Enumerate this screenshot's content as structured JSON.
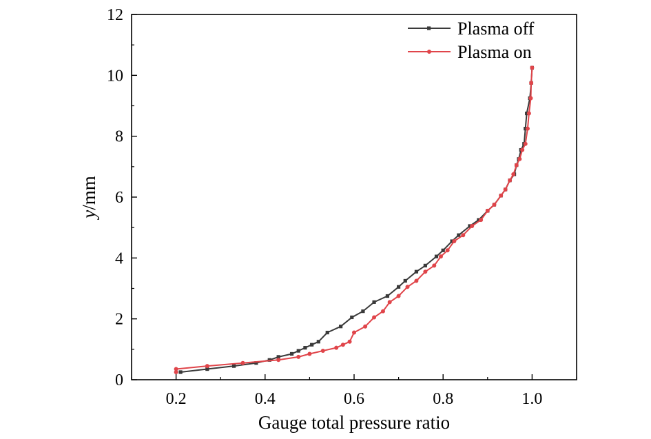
{
  "chart_data": {
    "type": "line",
    "title": "",
    "xlabel": "Gauge total pressure ratio",
    "ylabel_italic": "y",
    "ylabel_rest": "/mm",
    "xlim": [
      0.1,
      1.1
    ],
    "ylim": [
      0,
      12
    ],
    "x_ticks": [
      0.2,
      0.4,
      0.6,
      0.8,
      1.0
    ],
    "x_tick_labels": [
      "0.2",
      "0.4",
      "0.6",
      "0.8",
      "1.0"
    ],
    "y_ticks": [
      0,
      2,
      4,
      6,
      8,
      10,
      12
    ],
    "y_tick_labels": [
      "0",
      "2",
      "4",
      "6",
      "8",
      "10",
      "12"
    ],
    "grid": false,
    "legend_position": "top-right",
    "series": [
      {
        "name": "Plasma off",
        "color": "#3a3a3a",
        "marker": "square",
        "points": [
          [
            0.21,
            0.25
          ],
          [
            0.27,
            0.35
          ],
          [
            0.33,
            0.45
          ],
          [
            0.38,
            0.55
          ],
          [
            0.41,
            0.65
          ],
          [
            0.43,
            0.75
          ],
          [
            0.46,
            0.85
          ],
          [
            0.475,
            0.95
          ],
          [
            0.49,
            1.05
          ],
          [
            0.505,
            1.15
          ],
          [
            0.52,
            1.25
          ],
          [
            0.54,
            1.55
          ],
          [
            0.57,
            1.75
          ],
          [
            0.595,
            2.05
          ],
          [
            0.62,
            2.25
          ],
          [
            0.645,
            2.55
          ],
          [
            0.675,
            2.75
          ],
          [
            0.7,
            3.05
          ],
          [
            0.715,
            3.25
          ],
          [
            0.74,
            3.55
          ],
          [
            0.76,
            3.75
          ],
          [
            0.785,
            4.05
          ],
          [
            0.8,
            4.25
          ],
          [
            0.82,
            4.55
          ],
          [
            0.835,
            4.75
          ],
          [
            0.86,
            5.05
          ],
          [
            0.88,
            5.25
          ],
          [
            0.9,
            5.55
          ],
          [
            0.915,
            5.75
          ],
          [
            0.93,
            6.05
          ],
          [
            0.94,
            6.25
          ],
          [
            0.95,
            6.55
          ],
          [
            0.96,
            6.75
          ],
          [
            0.965,
            7.05
          ],
          [
            0.97,
            7.25
          ],
          [
            0.975,
            7.55
          ],
          [
            0.982,
            7.75
          ],
          [
            0.985,
            8.25
          ],
          [
            0.988,
            8.75
          ],
          [
            0.995,
            9.25
          ],
          [
            0.998,
            9.75
          ],
          [
            1.0,
            10.25
          ]
        ]
      },
      {
        "name": "Plasma on",
        "color": "#e0454a",
        "marker": "circle",
        "points": [
          [
            0.2,
            0.25
          ],
          [
            0.2,
            0.35
          ],
          [
            0.27,
            0.45
          ],
          [
            0.35,
            0.55
          ],
          [
            0.43,
            0.65
          ],
          [
            0.475,
            0.75
          ],
          [
            0.5,
            0.85
          ],
          [
            0.53,
            0.95
          ],
          [
            0.56,
            1.05
          ],
          [
            0.575,
            1.15
          ],
          [
            0.59,
            1.25
          ],
          [
            0.6,
            1.55
          ],
          [
            0.625,
            1.75
          ],
          [
            0.645,
            2.05
          ],
          [
            0.665,
            2.25
          ],
          [
            0.68,
            2.55
          ],
          [
            0.7,
            2.75
          ],
          [
            0.72,
            3.05
          ],
          [
            0.74,
            3.25
          ],
          [
            0.76,
            3.55
          ],
          [
            0.78,
            3.75
          ],
          [
            0.795,
            4.05
          ],
          [
            0.81,
            4.25
          ],
          [
            0.825,
            4.55
          ],
          [
            0.845,
            4.75
          ],
          [
            0.865,
            5.05
          ],
          [
            0.885,
            5.25
          ],
          [
            0.9,
            5.55
          ],
          [
            0.915,
            5.75
          ],
          [
            0.93,
            6.05
          ],
          [
            0.94,
            6.25
          ],
          [
            0.95,
            6.55
          ],
          [
            0.958,
            6.75
          ],
          [
            0.965,
            7.05
          ],
          [
            0.972,
            7.25
          ],
          [
            0.978,
            7.55
          ],
          [
            0.985,
            7.75
          ],
          [
            0.99,
            8.25
          ],
          [
            0.993,
            8.75
          ],
          [
            0.997,
            9.25
          ],
          [
            0.998,
            9.75
          ],
          [
            1.0,
            10.25
          ]
        ]
      }
    ]
  }
}
